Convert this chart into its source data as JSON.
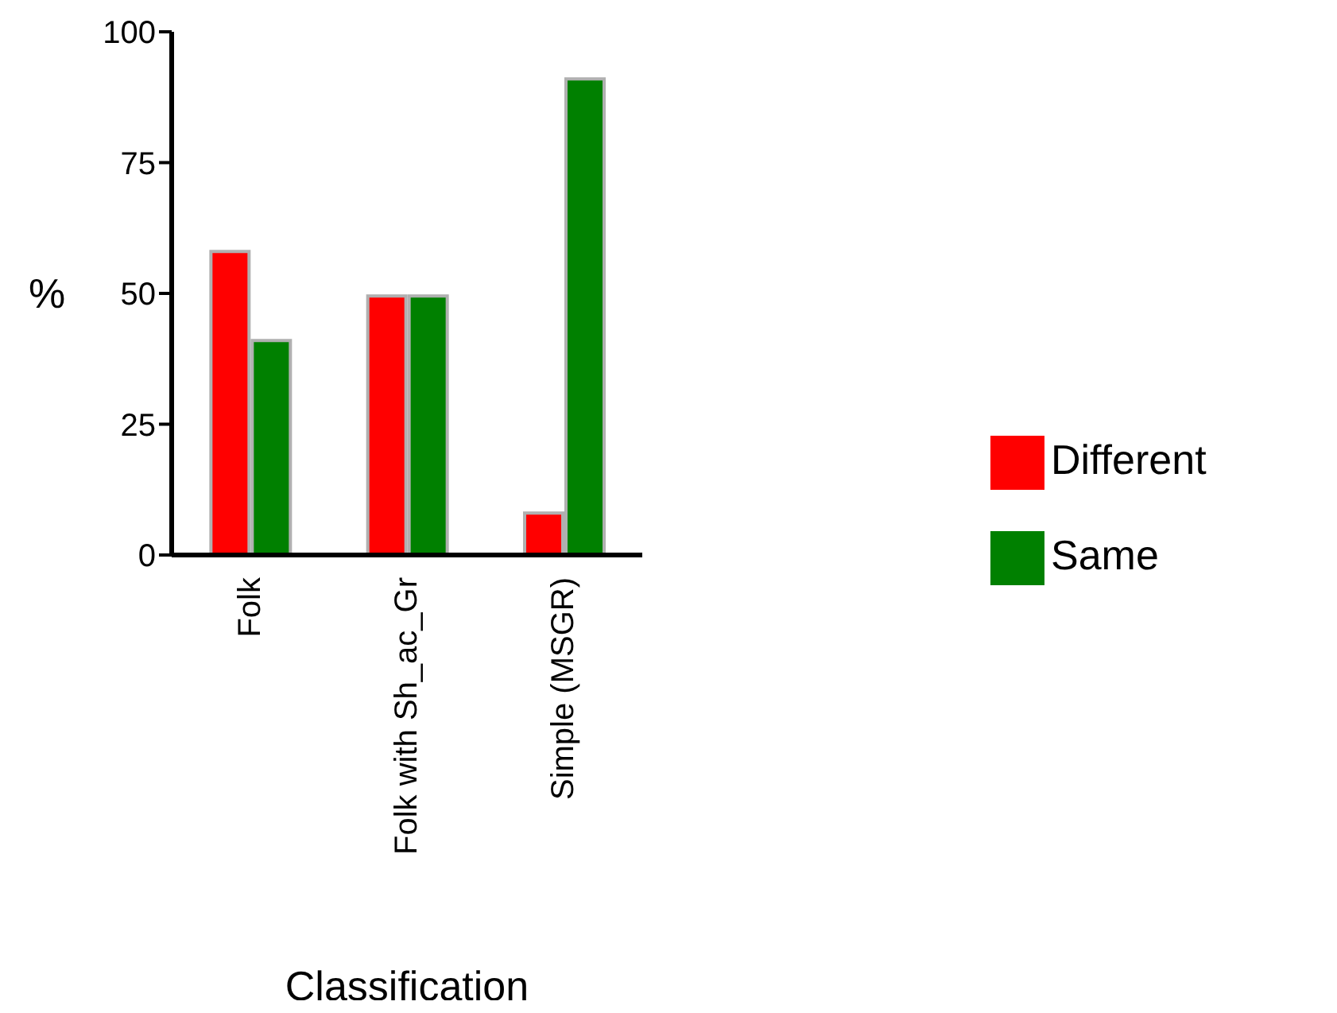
{
  "chart_data": {
    "type": "bar",
    "xlabel": "Classification",
    "ylabel": "%",
    "categories": [
      "Folk",
      "Folk with Sh_ac_Gr",
      "Simple (MSGR)"
    ],
    "series": [
      {
        "name": "Different",
        "color": "#ff0000",
        "values": [
          58,
          49.5,
          8
        ]
      },
      {
        "name": "Same",
        "color": "#008000",
        "values": [
          41,
          49.5,
          91
        ]
      }
    ],
    "ylim": [
      0,
      100
    ],
    "yticks": [
      0,
      25,
      50,
      75,
      100
    ],
    "grid": false,
    "legend": "right"
  }
}
